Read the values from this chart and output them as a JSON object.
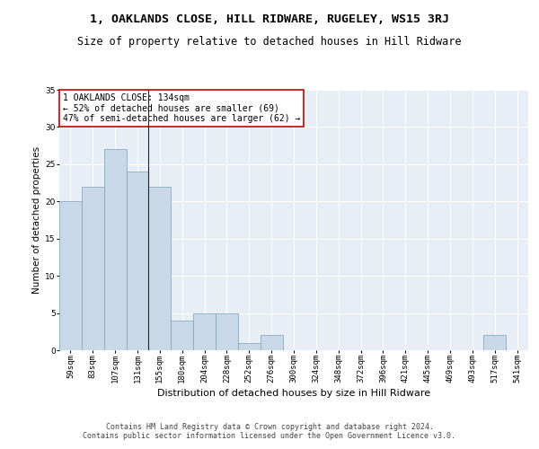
{
  "title": "1, OAKLANDS CLOSE, HILL RIDWARE, RUGELEY, WS15 3RJ",
  "subtitle": "Size of property relative to detached houses in Hill Ridware",
  "xlabel": "Distribution of detached houses by size in Hill Ridware",
  "ylabel": "Number of detached properties",
  "bar_color": "#c8d8e8",
  "bar_edge_color": "#7aa0be",
  "categories": [
    "59sqm",
    "83sqm",
    "107sqm",
    "131sqm",
    "155sqm",
    "180sqm",
    "204sqm",
    "228sqm",
    "252sqm",
    "276sqm",
    "300sqm",
    "324sqm",
    "348sqm",
    "372sqm",
    "396sqm",
    "421sqm",
    "445sqm",
    "469sqm",
    "493sqm",
    "517sqm",
    "541sqm"
  ],
  "values": [
    20,
    22,
    27,
    24,
    22,
    4,
    5,
    5,
    1,
    2,
    0,
    0,
    0,
    0,
    0,
    0,
    0,
    0,
    0,
    2,
    0
  ],
  "ylim": [
    0,
    35
  ],
  "yticks": [
    0,
    5,
    10,
    15,
    20,
    25,
    30,
    35
  ],
  "annotation_text": "1 OAKLANDS CLOSE: 134sqm\n← 52% of detached houses are smaller (69)\n47% of semi-detached houses are larger (62) →",
  "annotation_box_color": "#ffffff",
  "annotation_box_edge": "#cc0000",
  "vline_x_idx": 3.5,
  "background_color": "#e8eef5",
  "footer_text": "Contains HM Land Registry data © Crown copyright and database right 2024.\nContains public sector information licensed under the Open Government Licence v3.0.",
  "title_fontsize": 9.5,
  "subtitle_fontsize": 8.5,
  "xlabel_fontsize": 8,
  "ylabel_fontsize": 7.5,
  "tick_fontsize": 6.5,
  "annotation_fontsize": 7,
  "footer_fontsize": 6
}
